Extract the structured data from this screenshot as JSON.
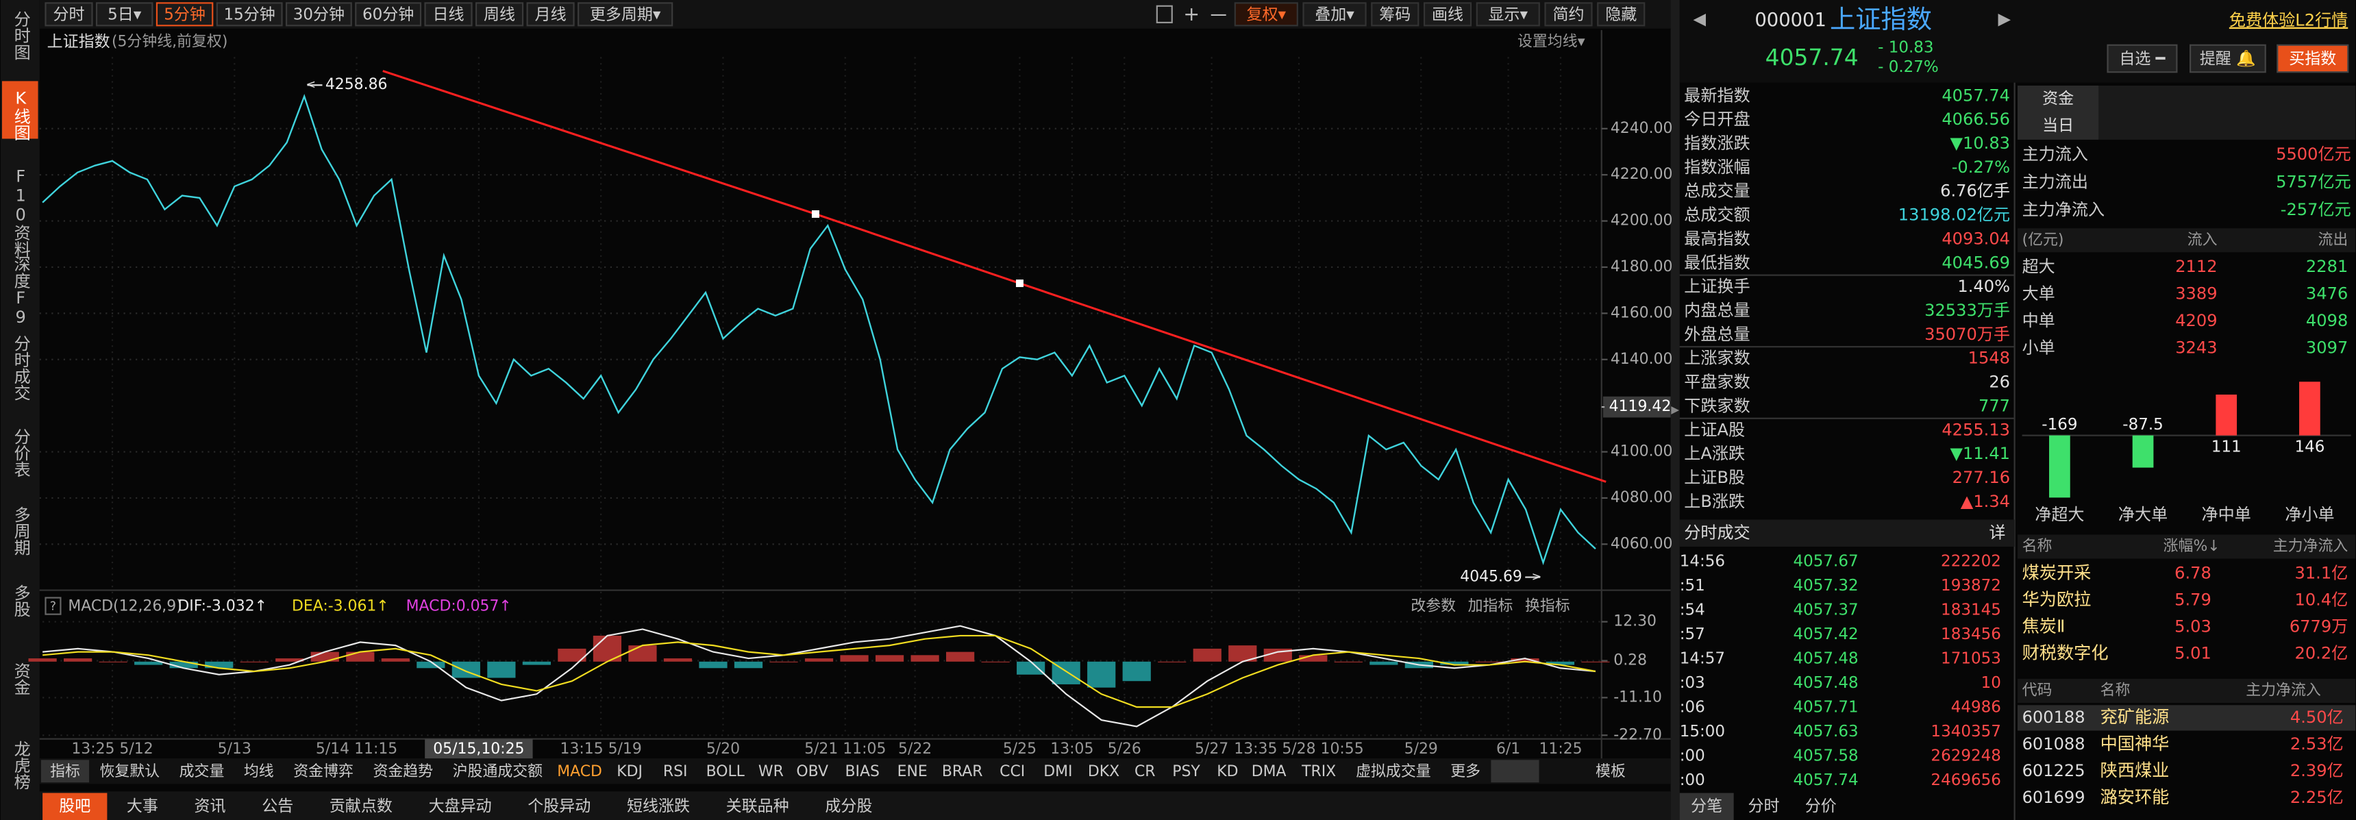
{
  "sidebar": {
    "items": [
      "分时图",
      "K线图",
      "F10资料",
      "深度F9",
      "分时成交",
      "分价表",
      "多周期",
      "多股",
      "资金",
      "龙虎榜"
    ],
    "active": 1
  },
  "toolbar": {
    "periods": [
      "分时",
      "5日▾",
      "5分钟",
      "15分钟",
      "30分钟",
      "60分钟",
      "日线",
      "周线",
      "月线",
      "更多周期▾"
    ],
    "active": 2,
    "tools": [
      "复权▾",
      "叠加▾",
      "筹码",
      "画线",
      "显示▾",
      "简约",
      "隐藏"
    ],
    "accent": 0
  },
  "chart_data": [
    {
      "type": "line",
      "title": "上证指数",
      "subtitle": "(5分钟线,前复权)",
      "setting": "设置均线▾",
      "color": "#3fd3dc",
      "categories": [
        null,
        null,
        null,
        null,
        "13:25 5/12",
        null,
        null,
        null,
        null,
        null,
        null,
        "5/13",
        null,
        null,
        null,
        null,
        null,
        null,
        "5/14 11:15",
        null,
        null,
        null,
        null,
        null,
        null,
        "05/15,10:25",
        null,
        null,
        null,
        null,
        null,
        null,
        "13:15 5/19",
        null,
        null,
        null,
        null,
        null,
        null,
        "5/20",
        null,
        null,
        null,
        null,
        null,
        null,
        "5/21 11:05",
        null,
        null,
        null,
        "5/22",
        null,
        null,
        null,
        null,
        null,
        "5/25",
        null,
        null,
        "13:05",
        null,
        null,
        "5/26",
        null,
        null,
        null,
        null,
        "5/27",
        null,
        null,
        null,
        null,
        "13:35 5/28 10:55",
        null,
        null,
        null,
        null,
        null,
        null,
        "5/29",
        null,
        null,
        null,
        null,
        "6/1",
        null,
        null,
        "11:25",
        null,
        null
      ],
      "x_highlight": 25,
      "values": [
        4208,
        4215,
        4221,
        4224,
        4226,
        4221,
        4218,
        4205,
        4211,
        4210,
        4198,
        4215,
        4218,
        4224,
        4234,
        4254,
        4231,
        4218,
        4198,
        4211,
        4218,
        4179,
        4143,
        4185,
        4166,
        4133,
        4121,
        4140,
        4133,
        4136,
        4130,
        4123,
        4133,
        4117,
        4127,
        4140,
        4149,
        4159,
        4169,
        4149,
        4156,
        4162,
        4159,
        4162,
        4188,
        4198,
        4179,
        4166,
        4140,
        4101,
        4088,
        4078,
        4101,
        4110,
        4117,
        4136,
        4141,
        4140,
        4143,
        4133,
        4146,
        4130,
        4133,
        4120,
        4136,
        4123,
        4146,
        4143,
        4127,
        4107,
        4101,
        4094,
        4088,
        4084,
        4078,
        4065,
        4107,
        4101,
        4104,
        4094,
        4088,
        4101,
        4078,
        4065,
        4088,
        4075,
        4052,
        4075,
        4065,
        4058
      ],
      "ylim": [
        4042,
        4271
      ],
      "yticks": [
        {
          "value": 4240,
          "label": "4240.00"
        },
        {
          "value": 4220,
          "label": "4220.00"
        },
        {
          "value": 4200,
          "label": "4200.00"
        },
        {
          "value": 4180,
          "label": "4180.00"
        },
        {
          "value": 4160,
          "label": "4160.00"
        },
        {
          "value": 4140,
          "label": "4140.00"
        },
        {
          "value": 4100,
          "label": "4100.00"
        },
        {
          "value": 4080,
          "label": "4080.00"
        },
        {
          "value": 4060,
          "label": "4060.00"
        }
      ],
      "cursor_tick": {
        "value": 4119.42,
        "label": "4119.42"
      },
      "grid": true,
      "annotations": [
        {
          "x": 15,
          "value": 4258.86,
          "label": "4258.86"
        },
        {
          "x": 86,
          "value": 4045.69,
          "label": "4045.69"
        }
      ],
      "trendline": {
        "color": "#ff2020",
        "x": [
          19.5,
          44.3,
          56,
          89.6
        ],
        "values": [
          4265,
          4203,
          4173,
          4087
        ]
      }
    },
    {
      "type": "macd",
      "title": "MACD(12,26,9)",
      "buttons": [
        "改参数",
        "加指标",
        "换指标"
      ],
      "up_color": "#a8302e",
      "down_color": "#1e8a8c",
      "values": [
        1,
        1,
        0,
        -1,
        -2,
        -2,
        0,
        1,
        3,
        3,
        1,
        -2,
        -5,
        -5,
        -1,
        4,
        8,
        5,
        1,
        -2,
        -2,
        0,
        1,
        2,
        2,
        2,
        3,
        0,
        -4,
        -7,
        -8,
        -6,
        0,
        4,
        5,
        4,
        2,
        0,
        -1,
        -2,
        -1,
        0,
        1,
        -1,
        0
      ],
      "bar_name": "MACD:0.057↑",
      "bar_name_color": "#e040e0",
      "series": [
        {
          "name": "DIF:-3.032↑",
          "color": "#e8e8e8",
          "values": [
            3,
            4,
            3,
            1,
            -2,
            -4,
            -3,
            -1,
            3,
            6,
            5,
            0,
            -8,
            -12,
            -10,
            -2,
            8,
            10,
            7,
            3,
            1,
            2,
            4,
            6,
            7,
            9,
            11,
            8,
            0,
            -10,
            -18,
            -20,
            -14,
            -6,
            0,
            3,
            4,
            3,
            1,
            -1,
            -2,
            -1,
            1,
            -2,
            -3
          ]
        },
        {
          "name": "DEA:-3.061↑",
          "color": "#f0dc20",
          "values": [
            2,
            3,
            3,
            2,
            0,
            -2,
            -3,
            -2,
            0,
            3,
            4,
            2,
            -3,
            -7,
            -9,
            -6,
            0,
            5,
            6,
            5,
            3,
            2,
            3,
            4,
            5,
            7,
            8,
            8,
            4,
            -3,
            -10,
            -14,
            -14,
            -10,
            -5,
            -1,
            2,
            3,
            2,
            1,
            -1,
            -1,
            0,
            -1,
            -3
          ]
        }
      ],
      "ylim": [
        -22.9,
        19.7
      ],
      "yticks": [
        {
          "value": 12.3,
          "label": "12.30"
        },
        0.28,
        {
          "value": -11.1,
          "label": "-11.10"
        },
        {
          "value": -22.7,
          "label": "-22.70"
        }
      ]
    },
    {
      "type": "bar",
      "categories": [
        "净超大",
        "净大单",
        "净中单",
        "净小单"
      ],
      "values": [
        -169,
        -87.5,
        111,
        146
      ],
      "colors": [
        "#3ee06b",
        "#3ee06b",
        "#ff3b3b",
        "#ff3b3b"
      ],
      "ylim": [
        -184,
        163
      ]
    }
  ],
  "indicator_tabs": {
    "items": [
      "指标",
      "恢复默认",
      "成交量",
      "均线",
      "资金博弈",
      "资金趋势",
      "沪股通成交额",
      "MACD",
      "KDJ",
      "RSI",
      "BOLL",
      "WR",
      "OBV",
      "BIAS",
      "ENE",
      "BRAR",
      "CCI",
      "DMI",
      "DKX",
      "CR",
      "PSY",
      "KD",
      "DMA",
      "TRIX",
      "虚拟成交量",
      "更多",
      "模板"
    ],
    "active": 7
  },
  "bottom_nav": {
    "items": [
      "股吧",
      "大事",
      "资讯",
      "公告",
      "贡献点数",
      "大盘异动",
      "个股异动",
      "短线涨跌",
      "关联品种",
      "成分股"
    ],
    "active": 0
  },
  "quote": {
    "code": "000001",
    "name": "上证指数",
    "price": "4057.74",
    "change": "- 10.83",
    "pct": "- 0.27%",
    "promo": "免费体验L2行情",
    "buttons": [
      "自选 ━",
      "提醒 🔔",
      "买指数"
    ]
  },
  "stats": [
    [
      {
        "label": "最新指数",
        "value": "4057.74",
        "color": "#3ee06b"
      },
      {
        "label": "今日开盘",
        "value": "4066.56",
        "color": "#3ee06b"
      },
      {
        "label": "指数涨跌",
        "value": "▼10.83",
        "color": "#3ee06b"
      },
      {
        "label": "指数涨幅",
        "value": "-0.27%",
        "color": "#3ee06b"
      },
      {
        "label": "总成交量",
        "value": "6.76亿手",
        "color": "#e0e0e0"
      },
      {
        "label": "总成交额",
        "value": "13198.02亿元",
        "color": "#3fd3dc"
      },
      {
        "label": "最高指数",
        "value": "4093.04",
        "color": "#ff4a4a"
      },
      {
        "label": "最低指数",
        "value": "4045.69",
        "color": "#3ee06b"
      }
    ],
    [
      {
        "label": "上证换手",
        "value": "1.40%",
        "color": "#e0e0e0"
      },
      {
        "label": "内盘总量",
        "value": "32533万手",
        "color": "#3ee06b"
      },
      {
        "label": "外盘总量",
        "value": "35070万手",
        "color": "#ff4a4a"
      }
    ],
    [
      {
        "label": "上涨家数",
        "value": "1548",
        "color": "#ff4a4a"
      },
      {
        "label": "平盘家数",
        "value": "26",
        "color": "#e0e0e0"
      },
      {
        "label": "下跌家数",
        "value": "777",
        "color": "#3ee06b"
      }
    ],
    [
      {
        "label": "上证A股",
        "value": "4255.13",
        "color": "#ff4a4a"
      },
      {
        "label": "上A涨跌",
        "value": "▼11.41",
        "color": "#3ee06b"
      },
      {
        "label": "上证B股",
        "value": "277.16",
        "color": "#ff4a4a"
      },
      {
        "label": "上B涨跌",
        "value": "▲1.34",
        "color": "#ff4a4a"
      }
    ]
  ],
  "trades": {
    "title": "分时成交",
    "detail": "详",
    "rows": [
      [
        "14:56",
        "4057.67",
        "222202"
      ],
      [
        ":51",
        "4057.32",
        "193872"
      ],
      [
        ":54",
        "4057.37",
        "183145"
      ],
      [
        ":57",
        "4057.42",
        "183456"
      ],
      [
        "14:57",
        "4057.48",
        "171053"
      ],
      [
        ":03",
        "4057.48",
        "10"
      ],
      [
        ":06",
        "4057.71",
        "44986"
      ],
      [
        "15:00",
        "4057.63",
        "1340357"
      ],
      [
        ":00",
        "4057.58",
        "2629248"
      ],
      [
        ":00",
        "4057.74",
        "2469656"
      ]
    ]
  },
  "trade_tabs": {
    "items": [
      "分笔",
      "分时",
      "分价"
    ],
    "active": 0
  },
  "funds": {
    "tabs": [
      "资金",
      "当日"
    ],
    "summary": [
      {
        "label": "主力流入",
        "value": "5500亿元",
        "color": "#ff4a4a"
      },
      {
        "label": "主力流出",
        "value": "5757亿元",
        "color": "#3ee06b"
      },
      {
        "label": "主力净流入",
        "value": "-257亿元",
        "color": "#3ee06b"
      }
    ],
    "header": [
      "(亿元)",
      "流入",
      "流出"
    ],
    "rows": [
      [
        "超大",
        "2112",
        "2281"
      ],
      [
        "大单",
        "3389",
        "3476"
      ],
      [
        "中单",
        "4209",
        "4098"
      ],
      [
        "小单",
        "3243",
        "3097"
      ]
    ]
  },
  "sectors": {
    "header": [
      "名称",
      "涨幅%↓",
      "主力净流入"
    ],
    "rows": [
      [
        "煤炭开采",
        "6.78",
        "31.1亿"
      ],
      [
        "华为欧拉",
        "5.79",
        "10.4亿"
      ],
      [
        "焦炭Ⅱ",
        "5.03",
        "6779万"
      ],
      [
        "财税数字化",
        "5.01",
        "20.2亿"
      ]
    ]
  },
  "stocks": {
    "header": [
      "代码",
      "名称",
      "主力净流入"
    ],
    "rows": [
      [
        "600188",
        "兖矿能源",
        "4.50亿"
      ],
      [
        "601088",
        "中国神华",
        "2.53亿"
      ],
      [
        "601225",
        "陕西煤业",
        "2.39亿"
      ],
      [
        "601699",
        "潞安环能",
        "2.25亿"
      ]
    ]
  }
}
